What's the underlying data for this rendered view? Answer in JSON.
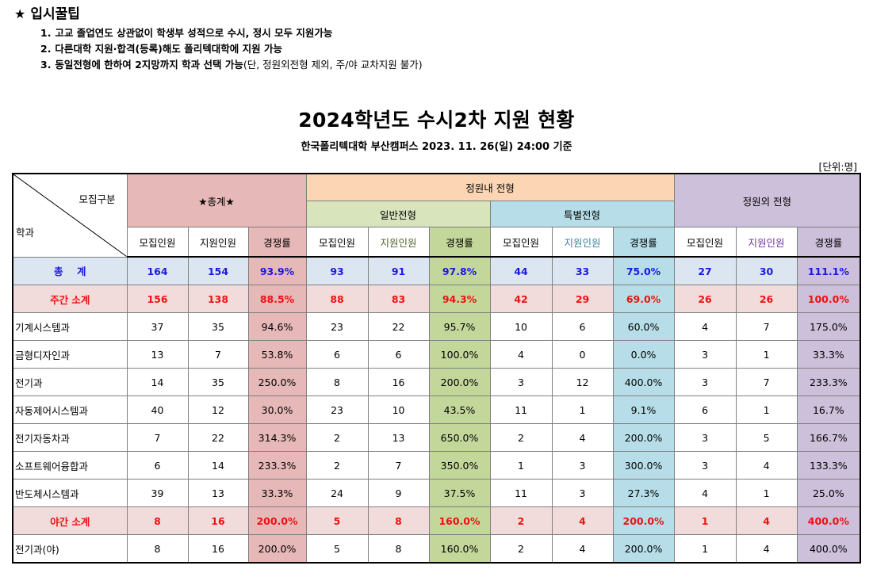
{
  "tips": {
    "star": "★",
    "title": "입시꿀팁",
    "items": [
      {
        "num": "1.",
        "text": "고교 졸업연도 상관없이 학생부 성적으로 수시, 정시 모두 지원가능",
        "note": ""
      },
      {
        "num": "2.",
        "text": "다른대학 지원·합격(등록)해도 폴리텍대학에 지원 가능",
        "note": ""
      },
      {
        "num": "3.",
        "text": "동일전형에 한하여 2지망까지 학과 선택 가능",
        "note": "(단, 정원외전형 제외, 주/야 교차지원 불가)"
      }
    ]
  },
  "title": "2024학년도 수시2차 지원 현황",
  "subtitle": "한국폴리텍대학 부산캠퍼스  2023. 11. 26(일) 24:00 기준",
  "unit": "[단위:명]",
  "header": {
    "corner_top": "모집구분",
    "corner_bottom": "학과",
    "total": "★총계★",
    "inner": "정원내 전형",
    "general": "일반전형",
    "special": "특별전형",
    "outer": "정원외 전형",
    "recruit": "모집인원",
    "apply": "지원인원",
    "rate": "경쟁률"
  },
  "rows": [
    {
      "name": "총    계",
      "v": [
        "164",
        "154",
        "93.9%",
        "93",
        "91",
        "97.8%",
        "44",
        "33",
        "75.0%",
        "27",
        "30",
        "111.1%"
      ]
    },
    {
      "name": "주간 소계",
      "v": [
        "156",
        "138",
        "88.5%",
        "88",
        "83",
        "94.3%",
        "42",
        "29",
        "69.0%",
        "26",
        "26",
        "100.0%"
      ]
    },
    {
      "name": "기계시스템과",
      "v": [
        "37",
        "35",
        "94.6%",
        "23",
        "22",
        "95.7%",
        "10",
        "6",
        "60.0%",
        "4",
        "7",
        "175.0%"
      ]
    },
    {
      "name": "금형디자인과",
      "v": [
        "13",
        "7",
        "53.8%",
        "6",
        "6",
        "100.0%",
        "4",
        "0",
        "0.0%",
        "3",
        "1",
        "33.3%"
      ]
    },
    {
      "name": "전기과",
      "v": [
        "14",
        "35",
        "250.0%",
        "8",
        "16",
        "200.0%",
        "3",
        "12",
        "400.0%",
        "3",
        "7",
        "233.3%"
      ]
    },
    {
      "name": "자동제어시스템과",
      "v": [
        "40",
        "12",
        "30.0%",
        "23",
        "10",
        "43.5%",
        "11",
        "1",
        "9.1%",
        "6",
        "1",
        "16.7%"
      ]
    },
    {
      "name": "전기자동차과",
      "v": [
        "7",
        "22",
        "314.3%",
        "2",
        "13",
        "650.0%",
        "2",
        "4",
        "200.0%",
        "3",
        "5",
        "166.7%"
      ]
    },
    {
      "name": "소프트웨어융합과",
      "v": [
        "6",
        "14",
        "233.3%",
        "2",
        "7",
        "350.0%",
        "1",
        "3",
        "300.0%",
        "3",
        "4",
        "133.3%"
      ]
    },
    {
      "name": "반도체시스템과",
      "v": [
        "39",
        "13",
        "33.3%",
        "24",
        "9",
        "37.5%",
        "11",
        "3",
        "27.3%",
        "4",
        "1",
        "25.0%"
      ]
    },
    {
      "name": "야간 소계",
      "v": [
        "8",
        "16",
        "200.0%",
        "5",
        "8",
        "160.0%",
        "2",
        "4",
        "200.0%",
        "1",
        "4",
        "400.0%"
      ]
    },
    {
      "name": "전기과(야)",
      "v": [
        "8",
        "16",
        "200.0%",
        "5",
        "8",
        "160.0%",
        "2",
        "4",
        "200.0%",
        "1",
        "4",
        "400.0%"
      ]
    }
  ],
  "colors": {
    "total_header": "#e6b8b7",
    "inner_header": "#fcd5b4",
    "general_header": "#d8e4bc",
    "special_header": "#b7dee8",
    "outer_header": "#ccc0da",
    "grand_total_row": "#dce6f1",
    "subtotal_row": "#f2dcdb",
    "grand_total_text": "#1a1adc",
    "subtotal_text": "#ee1111"
  }
}
